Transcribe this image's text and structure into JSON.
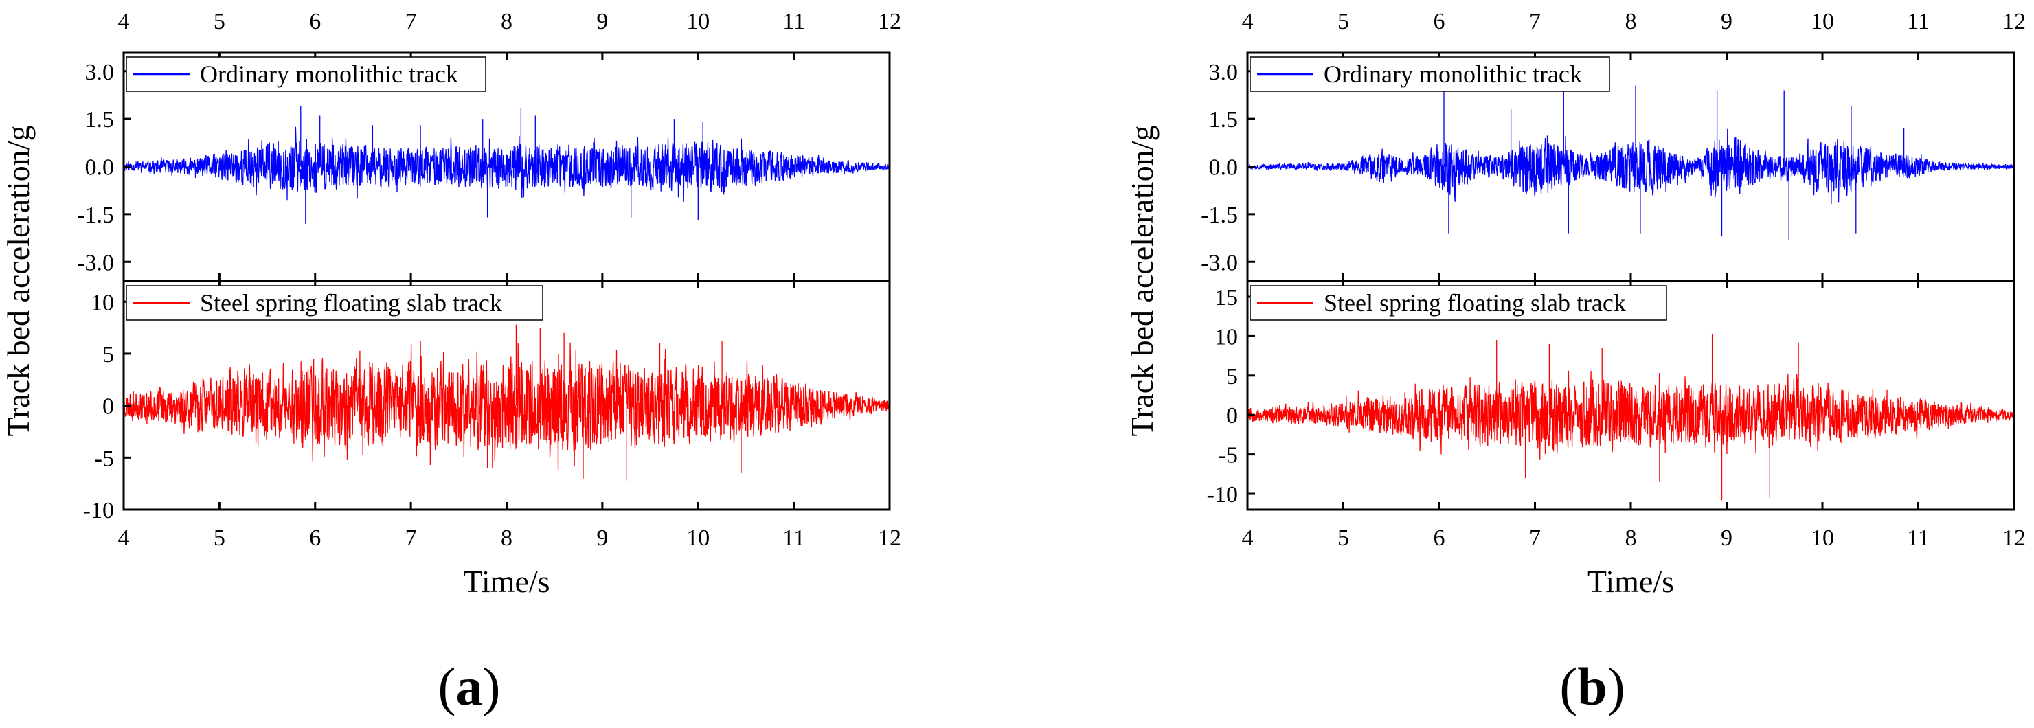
{
  "figure": {
    "subfigures": [
      {
        "open": "(",
        "letter": "a",
        "close": ")"
      },
      {
        "open": "(",
        "letter": "b",
        "close": ")"
      }
    ]
  },
  "colors": {
    "top": "#0000ff",
    "bottom": "#ff0000",
    "axis": "#000000"
  },
  "chart_data": [
    {
      "id": "a",
      "type": "line",
      "xlabel": "Time/s",
      "ylabel": "Track bed acceleration/g",
      "xlim": [
        4,
        12
      ],
      "xticks": [
        "4",
        "5",
        "6",
        "7",
        "8",
        "9",
        "10",
        "11",
        "12"
      ],
      "panels": [
        {
          "series": "Ordinary monolithic track",
          "color": "#0000ff",
          "ylim": [
            -3.6,
            3.6
          ],
          "yticks": [
            "-3.0",
            "-1.5",
            "0.0",
            "1.5",
            "3.0"
          ],
          "seed": 11,
          "envelope": {
            "x": [
              4,
              4.8,
              5.2,
              5.8,
              6.3,
              7,
              7.6,
              8,
              8.5,
              9,
              9.5,
              10,
              10.5,
              11,
              11.5,
              12
            ],
            "y": [
              0.12,
              0.3,
              0.6,
              0.85,
              0.75,
              0.6,
              0.65,
              0.75,
              0.7,
              0.65,
              0.7,
              0.8,
              0.65,
              0.4,
              0.2,
              0.08
            ]
          },
          "spikes": [
            [
              5.85,
              1.9
            ],
            [
              5.9,
              -1.8
            ],
            [
              6.05,
              1.6
            ],
            [
              6.6,
              1.3
            ],
            [
              7.1,
              1.3
            ],
            [
              7.75,
              1.5
            ],
            [
              7.8,
              -1.6
            ],
            [
              8.15,
              1.85
            ],
            [
              8.3,
              1.6
            ],
            [
              9.3,
              -1.6
            ],
            [
              9.75,
              1.5
            ],
            [
              10.05,
              1.4
            ],
            [
              10.0,
              -1.7
            ]
          ]
        },
        {
          "series": "Steel spring floating slab track",
          "color": "#ff0000",
          "ylim": [
            -10,
            12
          ],
          "yticks": [
            "-10",
            "-5",
            "0",
            "5",
            "10"
          ],
          "seed": 23,
          "envelope": {
            "x": [
              4,
              4.5,
              5,
              5.5,
              6,
              7,
              8,
              8.5,
              9,
              9.5,
              10,
              10.5,
              11,
              11.5,
              12
            ],
            "y": [
              1.2,
              1.8,
              2.7,
              3.5,
              3.9,
              4.2,
              4.5,
              4.5,
              4.2,
              4.0,
              3.8,
              3.3,
              2.4,
              1.3,
              0.5
            ]
          },
          "spikes": [
            [
              8.1,
              7.8
            ],
            [
              8.35,
              7.5
            ],
            [
              8.6,
              7.0
            ],
            [
              7.8,
              -6.0
            ],
            [
              8.8,
              -7.0
            ],
            [
              9.25,
              -7.2
            ],
            [
              10.45,
              -6.5
            ],
            [
              7.1,
              6.2
            ],
            [
              9.6,
              6.0
            ],
            [
              10.25,
              6.2
            ]
          ]
        }
      ]
    },
    {
      "id": "b",
      "type": "line",
      "xlabel": "Time/s",
      "ylabel": "Track bed acceleration/g",
      "xlim": [
        4,
        12
      ],
      "xticks": [
        "4",
        "5",
        "6",
        "7",
        "8",
        "9",
        "10",
        "11",
        "12"
      ],
      "panels": [
        {
          "series": "Ordinary monolithic track",
          "color": "#0000ff",
          "ylim": [
            -3.6,
            3.6
          ],
          "yticks": [
            "-3.0",
            "-1.5",
            "0.0",
            "1.5",
            "3.0"
          ],
          "seed": 37,
          "envelope": {
            "x": [
              4,
              5,
              5.1,
              5.4,
              5.6,
              5.8,
              6.1,
              6.4,
              6.6,
              6.9,
              7.2,
              7.5,
              7.6,
              7.9,
              8.2,
              8.5,
              8.7,
              8.9,
              9.1,
              9.4,
              9.7,
              10,
              10.3,
              10.6,
              10.9,
              11.2,
              12
            ],
            "y": [
              0.07,
              0.12,
              0.2,
              0.55,
              0.25,
              0.35,
              0.9,
              0.4,
              0.3,
              0.9,
              0.95,
              0.4,
              0.3,
              0.8,
              0.95,
              0.4,
              0.3,
              0.9,
              0.95,
              0.4,
              0.35,
              0.85,
              0.9,
              0.45,
              0.4,
              0.15,
              0.06
            ]
          },
          "spikes": [
            [
              6.05,
              2.45
            ],
            [
              6.1,
              -2.1
            ],
            [
              6.75,
              1.8
            ],
            [
              7.3,
              2.6
            ],
            [
              7.35,
              -2.1
            ],
            [
              8.05,
              2.55
            ],
            [
              8.1,
              -2.1
            ],
            [
              8.9,
              2.4
            ],
            [
              8.95,
              -2.2
            ],
            [
              9.6,
              2.4
            ],
            [
              9.65,
              -2.3
            ],
            [
              10.3,
              1.9
            ],
            [
              10.35,
              -2.1
            ],
            [
              10.85,
              1.2
            ]
          ]
        },
        {
          "series": "Steel spring floating slab track",
          "color": "#ff0000",
          "ylim": [
            -12,
            17
          ],
          "yticks": [
            "-10",
            "-5",
            "0",
            "5",
            "10",
            "15"
          ],
          "seed": 53,
          "envelope": {
            "x": [
              4,
              4.8,
              5.3,
              6,
              6.5,
              7,
              7.5,
              8,
              8.5,
              9,
              9.5,
              10,
              10.5,
              11,
              11.5,
              12
            ],
            "y": [
              0.8,
              1.3,
              2.5,
              3.6,
              4.0,
              4.2,
              4.2,
              4.2,
              4.1,
              4.0,
              3.9,
              3.5,
              2.9,
              2.0,
              1.2,
              0.6
            ]
          },
          "spikes": [
            [
              6.6,
              9.5
            ],
            [
              7.15,
              9.0
            ],
            [
              7.7,
              8.5
            ],
            [
              8.85,
              10.3
            ],
            [
              8.95,
              -10.8
            ],
            [
              9.45,
              -10.5
            ],
            [
              9.75,
              9.2
            ],
            [
              8.3,
              -8.5
            ],
            [
              6.9,
              -8.0
            ]
          ]
        }
      ]
    }
  ]
}
